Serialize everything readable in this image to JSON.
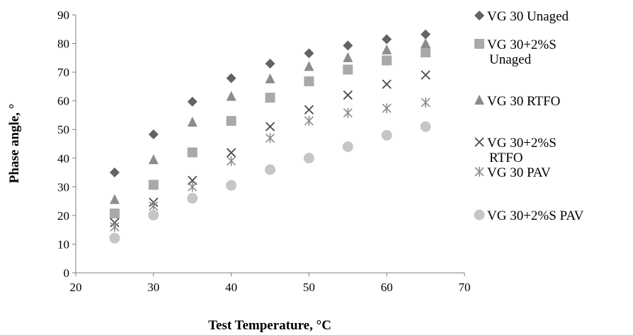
{
  "chart_data": {
    "type": "scatter",
    "title": "",
    "xlabel": "Test Temperature, °C",
    "ylabel": "Phase angle, °",
    "xlim": [
      20,
      70
    ],
    "ylim": [
      0,
      90
    ],
    "xticks": [
      20,
      30,
      40,
      50,
      60,
      70
    ],
    "yticks": [
      0,
      10,
      20,
      30,
      40,
      50,
      60,
      70,
      80,
      90
    ],
    "grid": false,
    "legend_position": "right",
    "x": [
      25,
      30,
      35,
      40,
      45,
      50,
      55,
      60,
      65
    ],
    "series": [
      {
        "name": "VG 30 Unaged",
        "marker": "diamond",
        "color": "#636363",
        "values": [
          35,
          48.3,
          59.7,
          67.9,
          73,
          76.6,
          79.3,
          81.5,
          83.2
        ]
      },
      {
        "name": "VG 30+2%S Unaged",
        "marker": "square",
        "color": "#a9a9a9",
        "values": [
          20.7,
          30.7,
          42,
          53,
          61.1,
          66.8,
          70.9,
          74.1,
          76.9
        ]
      },
      {
        "name": "VG 30 RTFO",
        "marker": "triangle",
        "color": "#8c8c8c",
        "values": [
          25.5,
          39.4,
          52.5,
          61.5,
          67.6,
          71.9,
          75,
          77.7,
          79.9
        ]
      },
      {
        "name": "VG 30+2%S RTFO",
        "marker": "x",
        "color": "#4a4a4a",
        "values": [
          17.5,
          24.6,
          32.2,
          41.9,
          51,
          56.9,
          62,
          65.8,
          69
        ]
      },
      {
        "name": "VG 30 PAV",
        "marker": "asterisk",
        "color": "#8c8c8c",
        "values": [
          16,
          23.3,
          30,
          39,
          47,
          53,
          55.8,
          57.4,
          59.4
        ]
      },
      {
        "name": "VG 30+2%S PAV",
        "marker": "circle",
        "color": "#c6c6c6",
        "values": [
          12.1,
          20.1,
          26,
          30.5,
          36,
          40,
          44,
          48,
          51
        ]
      }
    ],
    "legend_labels": [
      [
        "VG 30 Unaged"
      ],
      [
        "VG 30+2%S",
        "Unaged"
      ],
      [
        "VG 30 RTFO"
      ],
      [
        "VG 30+2%S",
        "RTFO"
      ],
      [
        "VG 30 PAV"
      ],
      [
        "VG 30+2%S PAV"
      ]
    ]
  }
}
